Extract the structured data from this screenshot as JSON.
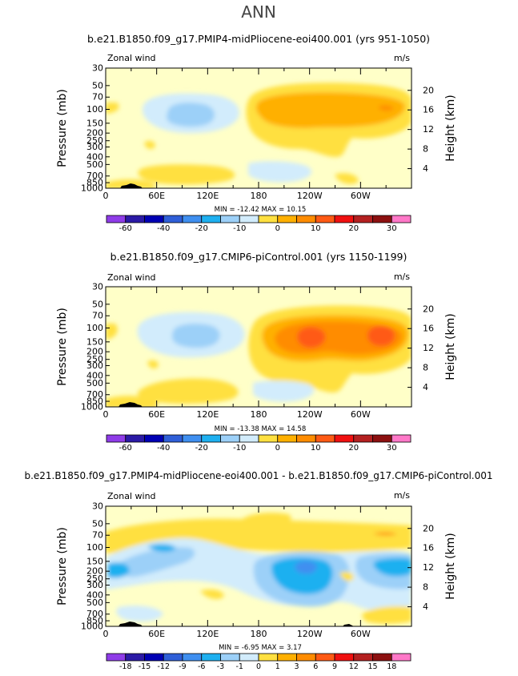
{
  "page_title": "ANN",
  "colors": {
    "c_n60": "#8f3ce8",
    "c_n50": "#2b1aa6",
    "c_n40": "#0000b4",
    "c_n30": "#2f5fd8",
    "c_n20": "#3f8ff0",
    "c_n15": "#1eb0f0",
    "c_n10": "#9cd0f8",
    "c_n5": "#d2ecfc",
    "c_0": "#ffffc8",
    "c_5": "#ffe040",
    "c_10": "#ffb000",
    "c_15": "#ff8c00",
    "c_20": "#ff5a14",
    "c_25": "#f01010",
    "c_30": "#b42020",
    "c_35": "#8c1010",
    "c_40": "#ff78c8",
    "topo": "#000000"
  },
  "chart_data": [
    {
      "type": "heatmap",
      "title": "b.e21.B1850.f09_g17.PMIP4-midPliocene-eoi400.001 (yrs 951-1050)",
      "variable_label": "Zonal wind",
      "units_label": "m/s",
      "ylabel": "Pressure (mb)",
      "y2label": "Height (km)",
      "x_ticks": [
        "0",
        "60E",
        "120E",
        "180",
        "120W",
        "60W"
      ],
      "y_ticks": [
        "30",
        "50",
        "70",
        "100",
        "150",
        "200",
        "250",
        "300",
        "400",
        "500",
        "700",
        "850",
        "1000"
      ],
      "height_ticks": [
        "20",
        "16",
        "12",
        "8",
        "4"
      ],
      "min_max_text": "MIN = -12.42   MAX =  10.15",
      "colorbar_labels": [
        "-60",
        "-40",
        "-20",
        "-10",
        "0",
        "10",
        "20",
        "30"
      ],
      "range": {
        "min": -12.42,
        "max": 10.15
      }
    },
    {
      "type": "heatmap",
      "title": "b.e21.B1850.f09_g17.CMIP6-piControl.001 (yrs 1150-1199)",
      "variable_label": "Zonal wind",
      "units_label": "m/s",
      "ylabel": "Pressure (mb)",
      "y2label": "Height (km)",
      "x_ticks": [
        "0",
        "60E",
        "120E",
        "180",
        "120W",
        "60W"
      ],
      "y_ticks": [
        "30",
        "50",
        "70",
        "100",
        "150",
        "200",
        "250",
        "300",
        "400",
        "500",
        "700",
        "850",
        "1000"
      ],
      "height_ticks": [
        "20",
        "16",
        "12",
        "8",
        "4"
      ],
      "min_max_text": "MIN = -13.38   MAX =  14.58",
      "colorbar_labels": [
        "-60",
        "-40",
        "-20",
        "-10",
        "0",
        "10",
        "20",
        "30"
      ],
      "range": {
        "min": -13.38,
        "max": 14.58
      }
    },
    {
      "type": "heatmap",
      "title": "b.e21.B1850.f09_g17.PMIP4-midPliocene-eoi400.001 - b.e21.B1850.f09_g17.CMIP6-piControl.001",
      "variable_label": "Zonal wind",
      "units_label": "m/s",
      "ylabel": "Pressure (mb)",
      "y2label": "Height (km)",
      "x_ticks": [
        "0",
        "60E",
        "120E",
        "180",
        "120W",
        "60W"
      ],
      "y_ticks": [
        "30",
        "50",
        "70",
        "100",
        "150",
        "200",
        "250",
        "300",
        "400",
        "500",
        "700",
        "850",
        "1000"
      ],
      "height_ticks": [
        "20",
        "16",
        "12",
        "8",
        "4"
      ],
      "min_max_text": "MIN =  -6.95   MAX =   3.17",
      "colorbar_labels": [
        "-18",
        "-15",
        "-12",
        "-9",
        "-6",
        "-3",
        "-1",
        "0",
        "1",
        "3",
        "6",
        "9",
        "12",
        "15",
        "18"
      ],
      "range": {
        "min": -6.95,
        "max": 3.17
      }
    }
  ]
}
